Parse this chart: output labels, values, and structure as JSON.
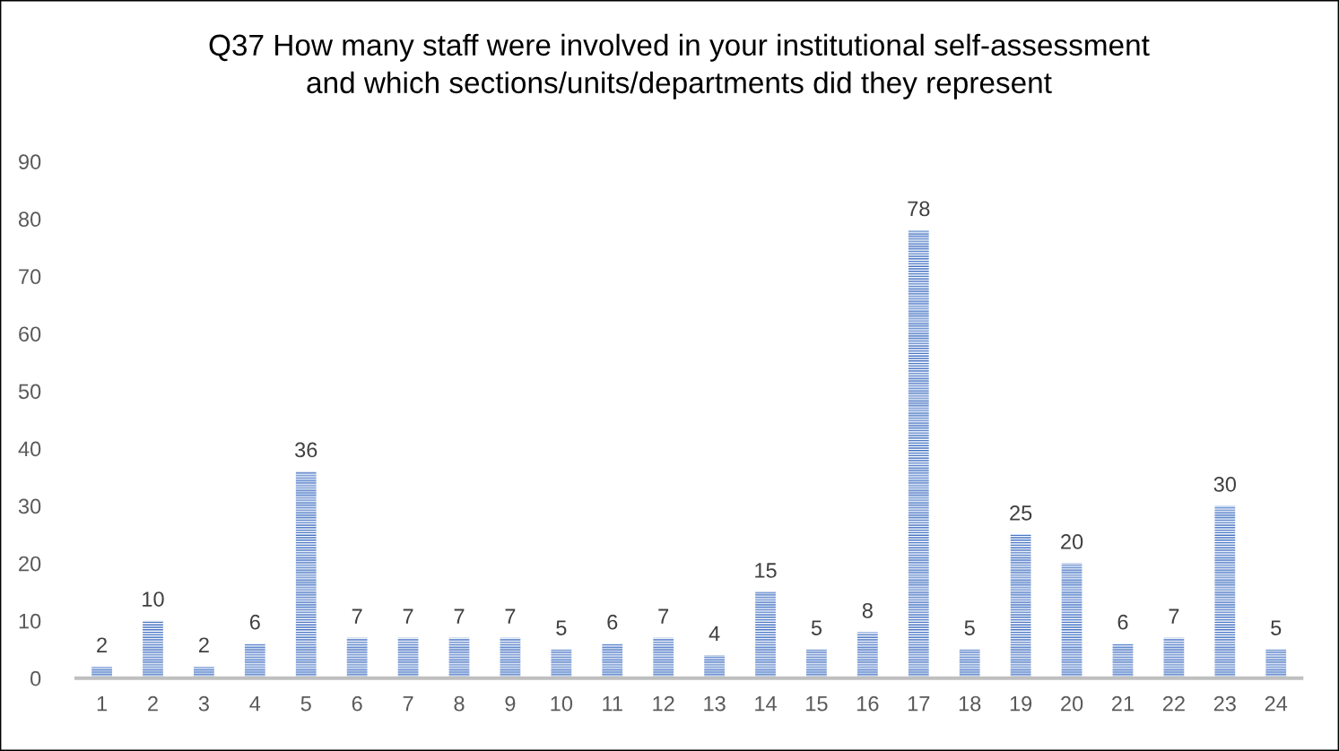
{
  "chart_data": {
    "type": "bar",
    "title": "Q37 How many staff were involved in your institutional self-assessment\nand which sections/units/departments did they represent",
    "categories": [
      "1",
      "2",
      "3",
      "4",
      "5",
      "6",
      "7",
      "8",
      "9",
      "10",
      "11",
      "12",
      "13",
      "14",
      "15",
      "16",
      "17",
      "18",
      "19",
      "20",
      "21",
      "22",
      "23",
      "24"
    ],
    "values": [
      2,
      10,
      2,
      6,
      36,
      7,
      7,
      7,
      7,
      5,
      6,
      7,
      4,
      15,
      5,
      8,
      78,
      5,
      25,
      20,
      6,
      7,
      30,
      5
    ],
    "color": "#4472c4",
    "ylim": [
      0,
      90
    ],
    "yticks": [
      0,
      10,
      20,
      30,
      40,
      50,
      60,
      70,
      80,
      90
    ],
    "grid": false,
    "data_labels": true
  }
}
